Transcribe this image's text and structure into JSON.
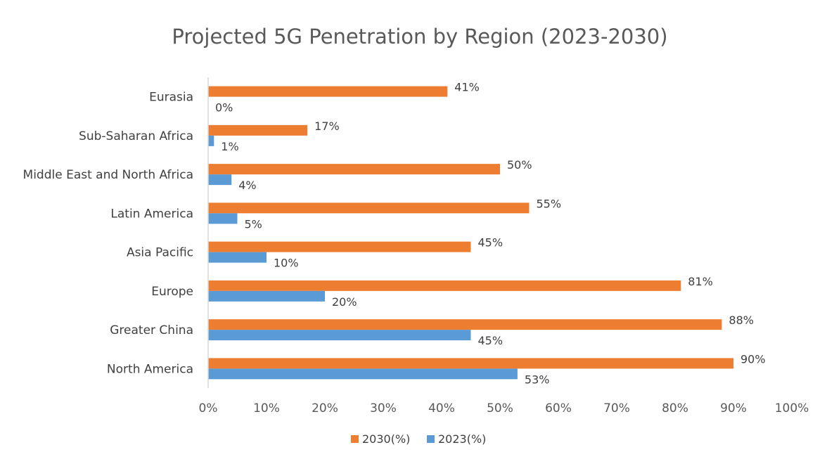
{
  "chart_data": {
    "type": "bar",
    "orientation": "horizontal",
    "title": "Projected 5G Penetration by Region (2023-2030)",
    "categories": [
      "Eurasia",
      "Sub-Saharan Africa",
      "Middle East and North Africa",
      "Latin America",
      "Asia Pacific",
      "Europe",
      "Greater China",
      "North America"
    ],
    "series": [
      {
        "name": "2030(%)",
        "color": "#ED7D31",
        "values": [
          41,
          17,
          50,
          55,
          45,
          81,
          88,
          90
        ],
        "labels": [
          "41%",
          "17%",
          "50%",
          "55%",
          "45%",
          "81%",
          "88%",
          "90%"
        ]
      },
      {
        "name": "2023(%)",
        "color": "#5B9BD5",
        "values": [
          0,
          1,
          4,
          5,
          10,
          20,
          45,
          53
        ],
        "labels": [
          "0%",
          "1%",
          "4%",
          "5%",
          "10%",
          "20%",
          "45%",
          "53%"
        ]
      }
    ],
    "xlim": [
      0,
      100
    ],
    "xticks": [
      "0%",
      "10%",
      "20%",
      "30%",
      "40%",
      "50%",
      "60%",
      "70%",
      "80%",
      "90%",
      "100%"
    ],
    "grid": false,
    "legend_position": "bottom"
  }
}
